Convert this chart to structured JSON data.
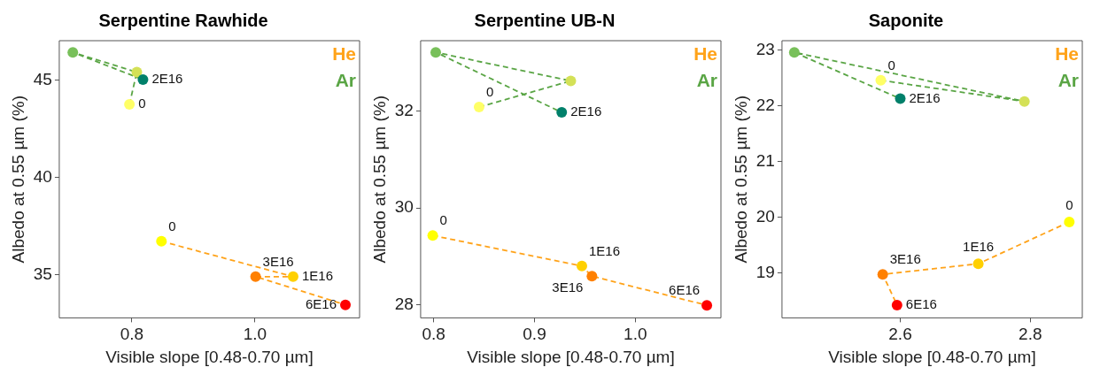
{
  "chart_data": [
    {
      "type": "scatter",
      "title": "Serpentine Rawhide",
      "xlabel": "Visible slope [0.48-0.70 µm]",
      "ylabel": "Albedo at 0.55 µm (%)",
      "xlim": [
        0.682,
        1.17
      ],
      "ylim": [
        32.77,
        47.03
      ],
      "xticks": [
        0.8,
        {
          "value": 1,
          "label": "1.0"
        }
      ],
      "yticks": [
        35,
        40,
        45
      ],
      "grid": false,
      "legend": "top right",
      "marker": "circle",
      "line_style": "dashed",
      "series": [
        {
          "name": "He",
          "color": "#ffa31a",
          "x": [
            0.848,
            1.062,
            1.001,
            1.147
          ],
          "values": [
            36.71,
            34.89,
            34.89,
            33.44
          ],
          "colors": [
            "#ffff00",
            "#ffd000",
            "#ff8000",
            "#ff0000"
          ]
        },
        {
          "name": "Ar",
          "color": "#5aa545",
          "x": [
            0.796,
            0.808,
            0.704,
            0.818
          ],
          "values": [
            43.75,
            45.41,
            46.43,
            45.03
          ],
          "colors": [
            "#ffff66",
            "#d4e157",
            "#78c05a",
            "#00806a"
          ]
        }
      ],
      "annotations": [
        {
          "text": "0",
          "x": 0.848,
          "y": 36.71
        },
        {
          "text": "1E16",
          "x": 1.062,
          "y": 34.89
        },
        {
          "text": "3E16",
          "x": 1.001,
          "y": 34.89
        },
        {
          "text": "6E16",
          "x": 1.147,
          "y": 33.44
        },
        {
          "text": "0",
          "x": 0.796,
          "y": 43.75
        },
        {
          "text": "2E16",
          "x": 0.818,
          "y": 45.03
        }
      ]
    },
    {
      "type": "scatter",
      "title": "Serpentine UB-N",
      "xlabel": "Visible slope [0.48-0.70 µm]",
      "ylabel": "Albedo at 0.55 µm (%)",
      "xlim": [
        0.787,
        1.085
      ],
      "ylim": [
        27.73,
        33.45
      ],
      "xticks": [
        0.8,
        0.9,
        {
          "value": 1,
          "label": "1.0"
        }
      ],
      "yticks": [
        28,
        30,
        32
      ],
      "grid": false,
      "legend": "top right",
      "marker": "circle",
      "line_style": "dashed",
      "series": [
        {
          "name": "He",
          "color": "#ffa31a",
          "x": [
            0.799,
            0.947,
            0.957,
            1.071
          ],
          "values": [
            29.43,
            28.8,
            28.59,
            27.99
          ],
          "colors": [
            "#ffff00",
            "#ffd000",
            "#ff8000",
            "#ff0000"
          ]
        },
        {
          "name": "Ar",
          "color": "#5aa545",
          "x": [
            0.845,
            0.936,
            0.802,
            0.927
          ],
          "values": [
            32.08,
            32.62,
            33.21,
            31.97
          ],
          "colors": [
            "#ffff66",
            "#d4e157",
            "#78c05a",
            "#00806a"
          ]
        }
      ],
      "annotations": [
        {
          "text": "0",
          "x": 0.799,
          "y": 29.43
        },
        {
          "text": "1E16",
          "x": 0.947,
          "y": 28.8
        },
        {
          "text": "3E16",
          "x": 0.957,
          "y": 28.59
        },
        {
          "text": "6E16",
          "x": 1.071,
          "y": 27.99
        },
        {
          "text": "0",
          "x": 0.845,
          "y": 32.08
        },
        {
          "text": "2E16",
          "x": 0.927,
          "y": 31.97
        }
      ]
    },
    {
      "type": "scatter",
      "title": "Saponite",
      "xlabel": "Visible slope [0.48-0.70 µm]",
      "ylabel": "Albedo at 0.55 µm (%)",
      "xlim": [
        2.418,
        2.88
      ],
      "ylim": [
        18.2,
        23.17
      ],
      "xticks": [
        2.6,
        2.8
      ],
      "yticks": [
        19,
        20,
        21,
        22,
        23
      ],
      "grid": false,
      "legend": "top right",
      "marker": "circle",
      "line_style": "dashed",
      "series": [
        {
          "name": "He",
          "color": "#ffa31a",
          "x": [
            2.86,
            2.72,
            2.573,
            2.595
          ],
          "values": [
            19.92,
            19.17,
            18.98,
            18.43
          ],
          "colors": [
            "#ffff00",
            "#ffd000",
            "#ff8000",
            "#ff0000"
          ]
        },
        {
          "name": "Ar",
          "color": "#5aa545",
          "x": [
            2.57,
            2.791,
            2.437,
            2.6
          ],
          "values": [
            22.46,
            22.08,
            22.96,
            22.13
          ],
          "colors": [
            "#ffff66",
            "#d4e157",
            "#78c05a",
            "#00806a"
          ]
        }
      ],
      "annotations": [
        {
          "text": "0",
          "x": 2.86,
          "y": 19.92
        },
        {
          "text": "1E16",
          "x": 2.72,
          "y": 19.17
        },
        {
          "text": "3E16",
          "x": 2.573,
          "y": 18.98
        },
        {
          "text": "6E16",
          "x": 2.595,
          "y": 18.43
        },
        {
          "text": "0",
          "x": 2.57,
          "y": 22.46
        },
        {
          "text": "2E16",
          "x": 2.6,
          "y": 22.13
        }
      ]
    }
  ]
}
